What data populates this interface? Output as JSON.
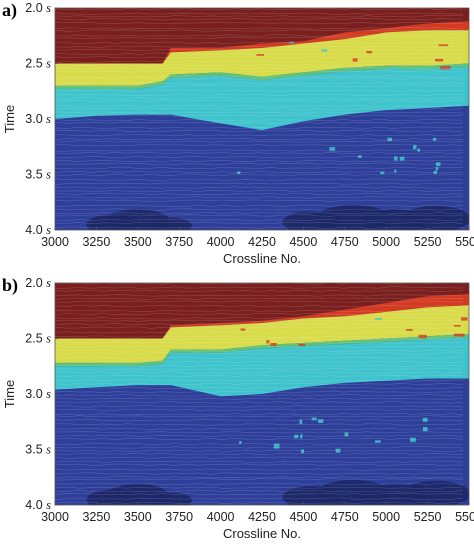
{
  "chart_data": [
    {
      "panel": "a)",
      "type": "heatmap",
      "xlabel": "Crossline No.",
      "ylabel": "Time",
      "x_ticks": [
        "3000",
        "3250",
        "3500",
        "3750",
        "4000",
        "4250",
        "4500",
        "4750",
        "5000",
        "5250",
        "5500"
      ],
      "y_ticks": [
        {
          "value": "2.0",
          "unit": "s"
        },
        {
          "value": "2.5",
          "unit": "s"
        },
        {
          "value": "3.0",
          "unit": "s"
        },
        {
          "value": "3.5",
          "unit": "s"
        },
        {
          "value": "4.0",
          "unit": "s"
        }
      ],
      "xlim": [
        3000,
        5500
      ],
      "ylim": [
        2.0,
        4.0
      ],
      "layer_colors": [
        "#7a1f1e",
        "#d43a22",
        "#d8dc4a",
        "#5ec27a",
        "#3fc3cc",
        "#2e3f9a",
        "#1c2766"
      ],
      "boundaries": {
        "x": [
          3000,
          3250,
          3500,
          3650,
          3700,
          4000,
          4250,
          4500,
          4750,
          5000,
          5250,
          5500
        ],
        "top_red": [
          2.5,
          2.5,
          2.5,
          2.5,
          2.36,
          2.36,
          2.32,
          2.3,
          2.22,
          2.18,
          2.14,
          2.12
        ],
        "yellow_top": [
          2.5,
          2.5,
          2.5,
          2.5,
          2.4,
          2.38,
          2.36,
          2.32,
          2.28,
          2.22,
          2.2,
          2.2
        ],
        "yellow_bottom": [
          2.7,
          2.7,
          2.7,
          2.66,
          2.6,
          2.58,
          2.62,
          2.58,
          2.54,
          2.52,
          2.52,
          2.5
        ],
        "cyan_bottom": [
          3.0,
          2.97,
          2.96,
          2.96,
          2.96,
          3.04,
          3.1,
          3.02,
          2.96,
          2.92,
          2.9,
          2.88
        ]
      }
    },
    {
      "panel": "b)",
      "type": "heatmap",
      "xlabel": "Crossline No.",
      "ylabel": "Time",
      "x_ticks": [
        "3000",
        "3250",
        "3500",
        "3750",
        "4000",
        "4250",
        "4500",
        "4750",
        "5000",
        "5250",
        "5500"
      ],
      "y_ticks": [
        {
          "value": "2.0",
          "unit": "s"
        },
        {
          "value": "2.5",
          "unit": "s"
        },
        {
          "value": "3.0",
          "unit": "s"
        },
        {
          "value": "3.5",
          "unit": "s"
        },
        {
          "value": "4.0",
          "unit": "s"
        }
      ],
      "xlim": [
        3000,
        5500
      ],
      "ylim": [
        2.0,
        4.0
      ],
      "layer_colors": [
        "#7a1f1e",
        "#d43a22",
        "#d8dc4a",
        "#5ec27a",
        "#3fc3cc",
        "#2e3f9a",
        "#1c2766"
      ],
      "boundaries": {
        "x": [
          3000,
          3250,
          3500,
          3650,
          3700,
          4000,
          4250,
          4500,
          4750,
          5000,
          5250,
          5500
        ],
        "top_red": [
          2.5,
          2.5,
          2.5,
          2.5,
          2.38,
          2.36,
          2.34,
          2.3,
          2.24,
          2.18,
          2.12,
          2.1
        ],
        "yellow_top": [
          2.5,
          2.5,
          2.5,
          2.5,
          2.4,
          2.38,
          2.36,
          2.32,
          2.3,
          2.26,
          2.22,
          2.2
        ],
        "yellow_bottom": [
          2.72,
          2.72,
          2.72,
          2.7,
          2.6,
          2.6,
          2.56,
          2.54,
          2.52,
          2.5,
          2.48,
          2.46
        ],
        "cyan_bottom": [
          2.96,
          2.94,
          2.92,
          2.92,
          2.92,
          3.02,
          3.0,
          2.94,
          2.9,
          2.88,
          2.86,
          2.86
        ]
      }
    }
  ]
}
